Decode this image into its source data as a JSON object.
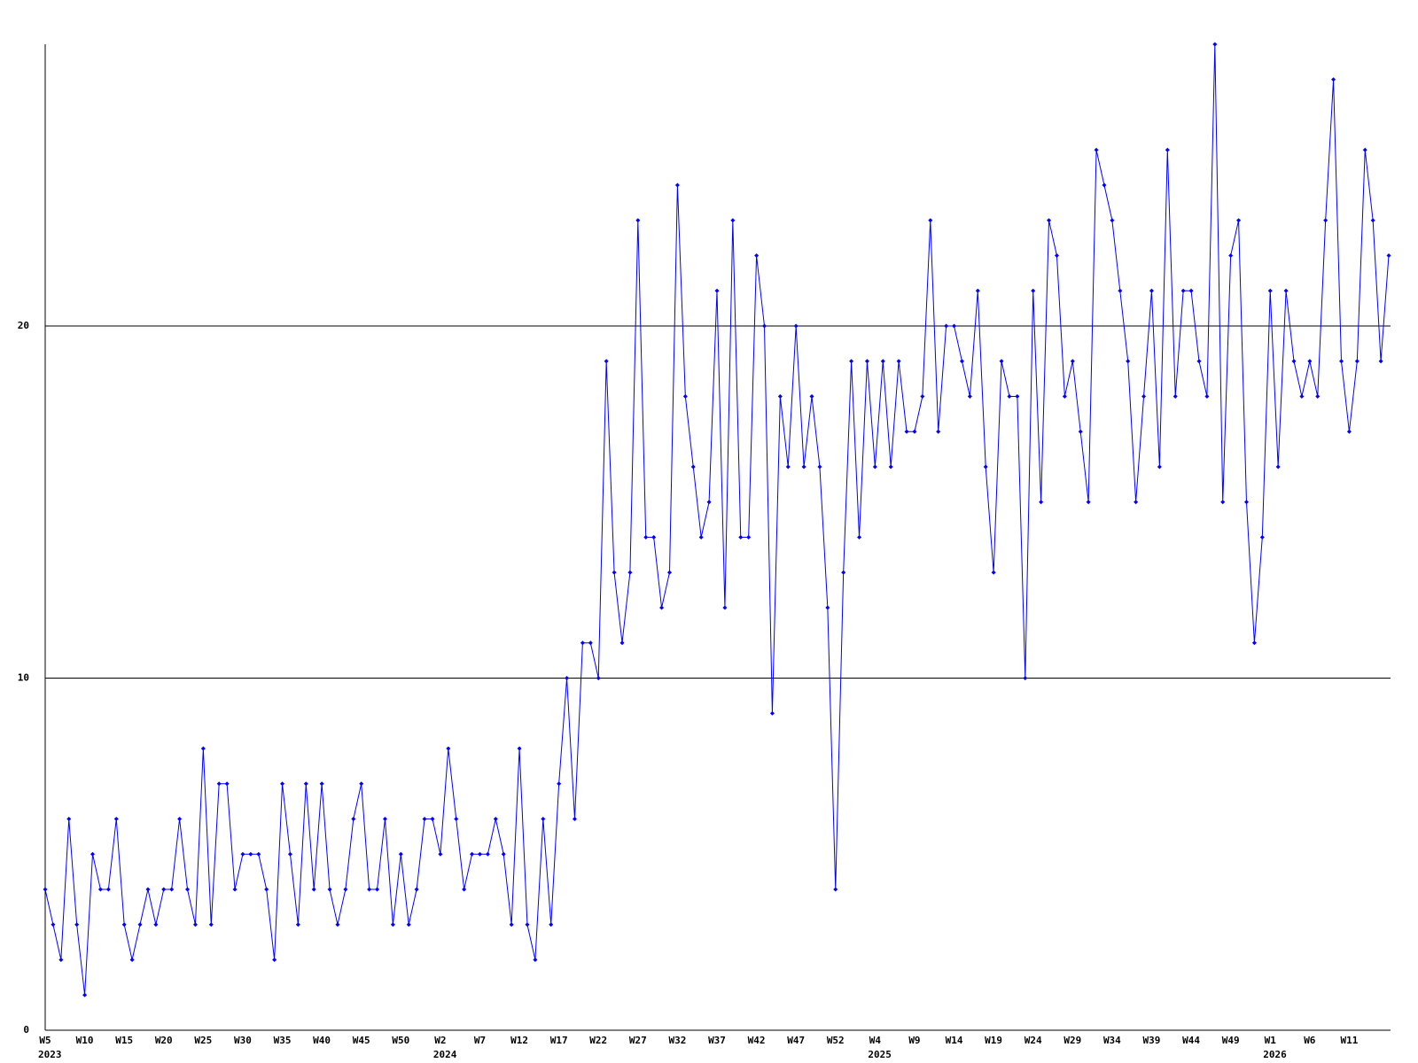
{
  "chart_data": {
    "type": "line",
    "categories": [
      "W5",
      null,
      null,
      null,
      null,
      "W10",
      null,
      null,
      null,
      null,
      "W15",
      null,
      null,
      null,
      null,
      "W20",
      null,
      null,
      null,
      null,
      "W25",
      null,
      null,
      null,
      null,
      "W30",
      null,
      null,
      null,
      null,
      "W35",
      null,
      null,
      null,
      null,
      "W40",
      null,
      null,
      null,
      null,
      "W45",
      null,
      null,
      null,
      null,
      "W50",
      null,
      null,
      null,
      null,
      "W2",
      null,
      null,
      null,
      null,
      "W7",
      null,
      null,
      null,
      null,
      "W12",
      null,
      null,
      null,
      null,
      "W17",
      null,
      null,
      null,
      null,
      "W22",
      null,
      null,
      null,
      null,
      "W27",
      null,
      null,
      null,
      null,
      "W32",
      null,
      null,
      null,
      null,
      "W37",
      null,
      null,
      null,
      null,
      "W42",
      null,
      null,
      null,
      null,
      "W47",
      null,
      null,
      null,
      null,
      "W52",
      null,
      null,
      null,
      null,
      "W4",
      null,
      null,
      null,
      null,
      "W9",
      null,
      null,
      null,
      null,
      "W14",
      null,
      null,
      null,
      null,
      "W19",
      null,
      null,
      null,
      null,
      "W24",
      null,
      null,
      null,
      null,
      "W29",
      null,
      null,
      null,
      null,
      "W34",
      null,
      null,
      null,
      null,
      "W39",
      null,
      null,
      null,
      null,
      "W44",
      null,
      null,
      null,
      null,
      "W49",
      null,
      null,
      null,
      null,
      "W1",
      null,
      null,
      null,
      null,
      "W6",
      null,
      null,
      null,
      null,
      "W11",
      null,
      null,
      null,
      null,
      null
    ],
    "years": [
      "2023",
      null,
      null,
      null,
      null,
      null,
      null,
      null,
      null,
      null,
      null,
      null,
      null,
      null,
      null,
      null,
      null,
      null,
      null,
      null,
      null,
      null,
      null,
      null,
      null,
      null,
      null,
      null,
      null,
      null,
      null,
      null,
      null,
      null,
      null,
      null,
      null,
      null,
      null,
      null,
      null,
      null,
      null,
      null,
      null,
      null,
      null,
      null,
      null,
      null,
      "2024",
      null,
      null,
      null,
      null,
      null,
      null,
      null,
      null,
      null,
      null,
      null,
      null,
      null,
      null,
      null,
      null,
      null,
      null,
      null,
      null,
      null,
      null,
      null,
      null,
      null,
      null,
      null,
      null,
      null,
      null,
      null,
      null,
      null,
      null,
      null,
      null,
      null,
      null,
      null,
      null,
      null,
      null,
      null,
      null,
      null,
      null,
      null,
      null,
      null,
      null,
      null,
      null,
      null,
      null,
      "2025",
      null,
      null,
      null,
      null,
      null,
      null,
      null,
      null,
      null,
      null,
      null,
      null,
      null,
      null,
      null,
      null,
      null,
      null,
      null,
      null,
      null,
      null,
      null,
      null,
      null,
      null,
      null,
      null,
      null,
      null,
      null,
      null,
      null,
      null,
      null,
      null,
      null,
      null,
      null,
      null,
      null,
      null,
      null,
      null,
      null,
      null,
      null,
      null,
      null,
      "2026",
      null,
      null,
      null,
      null,
      null,
      null,
      null,
      null,
      null,
      null,
      null,
      null,
      null,
      null,
      null
    ],
    "values": [
      4,
      3,
      2,
      6,
      3,
      1,
      5,
      4,
      4,
      6,
      3,
      2,
      3,
      4,
      3,
      4,
      4,
      6,
      4,
      3,
      8,
      3,
      7,
      7,
      4,
      5,
      5,
      5,
      4,
      2,
      7,
      5,
      3,
      7,
      4,
      7,
      4,
      3,
      4,
      6,
      7,
      4,
      4,
      6,
      3,
      5,
      3,
      4,
      6,
      6,
      5,
      8,
      6,
      4,
      5,
      5,
      5,
      6,
      5,
      3,
      8,
      3,
      2,
      6,
      3,
      7,
      10,
      6,
      11,
      11,
      10,
      19,
      13,
      11,
      13,
      23,
      14,
      14,
      12,
      13,
      24,
      18,
      16,
      14,
      15,
      21,
      12,
      23,
      14,
      14,
      22,
      20,
      9,
      18,
      16,
      20,
      16,
      18,
      16,
      12,
      4,
      13,
      19,
      14,
      19,
      16,
      19,
      16,
      19,
      17,
      17,
      18,
      23,
      17,
      20,
      20,
      19,
      18,
      21,
      16,
      13,
      19,
      18,
      18,
      10,
      21,
      15,
      23,
      22,
      18,
      19,
      17,
      15,
      25,
      24,
      23,
      21,
      19,
      15,
      18,
      21,
      16,
      25,
      18,
      21,
      21,
      19,
      18,
      28,
      15,
      22,
      23,
      15,
      11,
      14,
      21,
      16,
      21,
      19,
      18,
      19,
      18,
      23,
      27,
      19,
      17,
      19,
      25,
      23,
      19,
      22
    ],
    "color": "#0000ff",
    "ylim": [
      0,
      28
    ],
    "yticks": [
      0,
      10,
      20
    ],
    "grid": true
  }
}
